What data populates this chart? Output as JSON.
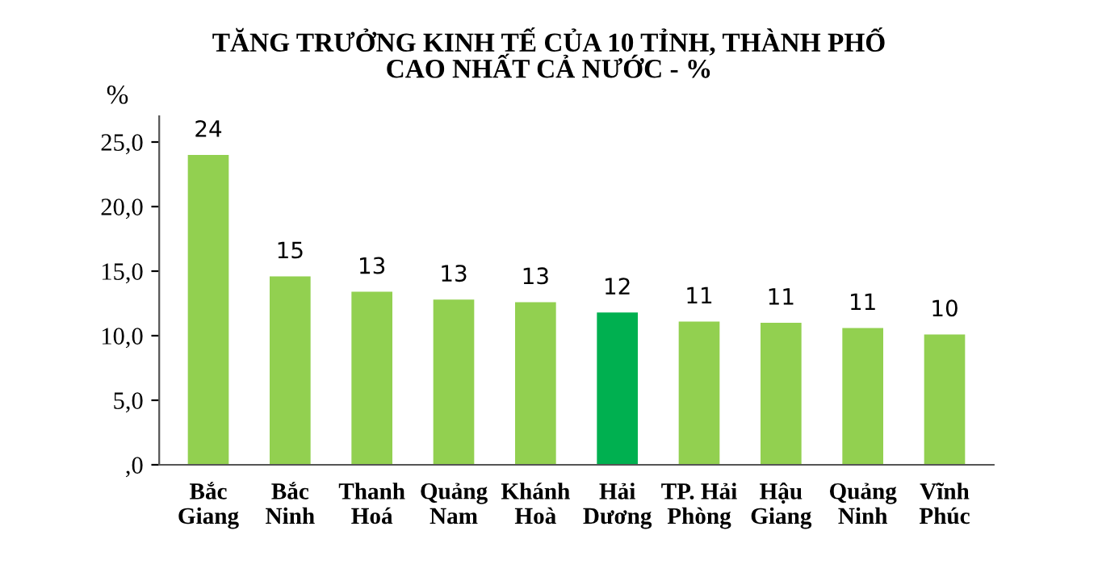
{
  "chart_data": {
    "type": "bar",
    "title": "TĂNG TRƯỞNG KINH TẾ CỦA 10 TỈNH, THÀNH PHỐ\nCAO NHẤT CẢ NƯỚC - %",
    "ylabel": "%",
    "categories": [
      "Bắc\nGiang",
      "Bắc\nNinh",
      "Thanh\nHoá",
      "Quảng\nNam",
      "Khánh\nHoà",
      "Hải\nDương",
      "TP. Hải\nPhòng",
      "Hậu\nGiang",
      "Quảng\nNinh",
      "Vĩnh\nPhúc"
    ],
    "values": [
      24.0,
      14.6,
      13.4,
      12.8,
      12.6,
      11.8,
      11.1,
      11.0,
      10.6,
      10.1
    ],
    "value_labels": [
      "24",
      "15",
      "13",
      "13",
      "13",
      "12",
      "11",
      "11",
      "11",
      "10"
    ],
    "colors": [
      "#92d050",
      "#92d050",
      "#92d050",
      "#92d050",
      "#92d050",
      "#00b050",
      "#92d050",
      "#92d050",
      "#92d050",
      "#92d050"
    ],
    "ylim": [
      0,
      27
    ],
    "yticks": [
      {
        "value": 0,
        "label": ",0"
      },
      {
        "value": 5,
        "label": "5,0"
      },
      {
        "value": 10,
        "label": "10,0"
      },
      {
        "value": 15,
        "label": "15,0"
      },
      {
        "value": 20,
        "label": "20,0"
      },
      {
        "value": 25,
        "label": "25,0"
      }
    ],
    "grid": false
  }
}
